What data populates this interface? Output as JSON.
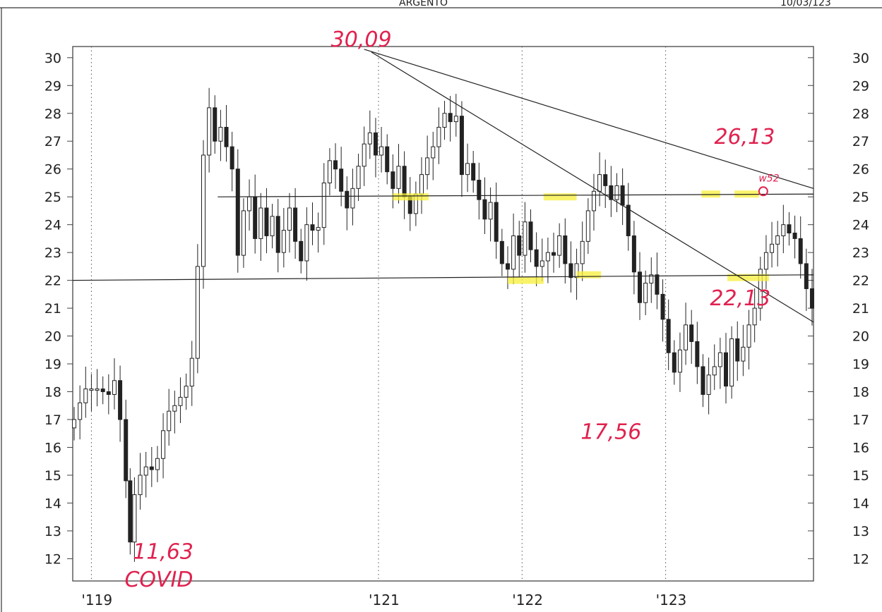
{
  "header": {
    "title": "ARGENTO",
    "date": "10/03/123"
  },
  "chart_data": {
    "type": "candlestick",
    "ylim": [
      11.2,
      30.4
    ],
    "yticks": [
      12,
      13,
      14,
      15,
      16,
      17,
      18,
      19,
      20,
      21,
      22,
      23,
      24,
      25,
      26,
      27,
      28,
      29,
      30
    ],
    "xlim": [
      2018.87,
      2024.03
    ],
    "xticks": [
      {
        "x": 2019.0,
        "label": "'119"
      },
      {
        "x": 2021.0,
        "label": "'121"
      },
      {
        "x": 2022.0,
        "label": "'122"
      },
      {
        "x": 2023.0,
        "label": "'123"
      }
    ],
    "grid": "vertical-dotted",
    "close_series": [
      [
        2018.88,
        17.0
      ],
      [
        2018.92,
        17.6
      ],
      [
        2018.96,
        18.1
      ],
      [
        2019.0,
        18.1
      ],
      [
        2019.04,
        18.1
      ],
      [
        2019.08,
        18.0
      ],
      [
        2019.12,
        17.9
      ],
      [
        2019.16,
        18.4
      ],
      [
        2019.2,
        17.0
      ],
      [
        2019.24,
        14.8
      ],
      [
        2019.27,
        12.6
      ],
      [
        2019.3,
        14.3
      ],
      [
        2019.34,
        15.0
      ],
      [
        2019.38,
        15.3
      ],
      [
        2019.42,
        15.2
      ],
      [
        2019.46,
        15.6
      ],
      [
        2019.5,
        16.6
      ],
      [
        2019.54,
        17.3
      ],
      [
        2019.58,
        17.5
      ],
      [
        2019.62,
        17.8
      ],
      [
        2019.66,
        18.2
      ],
      [
        2019.7,
        19.2
      ],
      [
        2019.74,
        22.5
      ],
      [
        2019.78,
        26.5
      ],
      [
        2019.82,
        28.2
      ],
      [
        2019.86,
        27.0
      ],
      [
        2019.9,
        27.5
      ],
      [
        2019.94,
        26.8
      ],
      [
        2019.98,
        26.0
      ],
      [
        2020.02,
        22.9
      ],
      [
        2020.06,
        24.5
      ],
      [
        2020.1,
        25.0
      ],
      [
        2020.14,
        23.5
      ],
      [
        2020.18,
        24.6
      ],
      [
        2020.22,
        23.6
      ],
      [
        2020.26,
        24.3
      ],
      [
        2020.3,
        23.0
      ],
      [
        2020.34,
        23.8
      ],
      [
        2020.38,
        24.6
      ],
      [
        2020.42,
        23.4
      ],
      [
        2020.46,
        22.7
      ],
      [
        2020.5,
        24.0
      ],
      [
        2020.54,
        23.8
      ],
      [
        2020.58,
        23.9
      ],
      [
        2020.62,
        25.5
      ],
      [
        2020.66,
        26.3
      ],
      [
        2020.7,
        26.0
      ],
      [
        2020.74,
        25.2
      ],
      [
        2020.78,
        24.6
      ],
      [
        2020.82,
        25.3
      ],
      [
        2020.86,
        26.1
      ],
      [
        2020.9,
        26.9
      ],
      [
        2020.94,
        27.3
      ],
      [
        2020.98,
        26.5
      ],
      [
        2021.02,
        26.8
      ],
      [
        2021.06,
        25.9
      ],
      [
        2021.1,
        25.3
      ],
      [
        2021.14,
        26.1
      ],
      [
        2021.18,
        25.0
      ],
      [
        2021.22,
        24.4
      ],
      [
        2021.26,
        25.1
      ],
      [
        2021.3,
        25.8
      ],
      [
        2021.34,
        26.4
      ],
      [
        2021.38,
        26.8
      ],
      [
        2021.42,
        27.5
      ],
      [
        2021.46,
        28.0
      ],
      [
        2021.5,
        27.7
      ],
      [
        2021.54,
        27.9
      ],
      [
        2021.58,
        25.8
      ],
      [
        2021.62,
        26.2
      ],
      [
        2021.66,
        25.6
      ],
      [
        2021.7,
        24.9
      ],
      [
        2021.74,
        24.2
      ],
      [
        2021.78,
        24.8
      ],
      [
        2021.82,
        23.4
      ],
      [
        2021.86,
        22.6
      ],
      [
        2021.9,
        22.4
      ],
      [
        2021.94,
        23.6
      ],
      [
        2021.98,
        22.9
      ],
      [
        2022.02,
        24.1
      ],
      [
        2022.06,
        23.1
      ],
      [
        2022.1,
        22.5
      ],
      [
        2022.14,
        22.7
      ],
      [
        2022.18,
        23.0
      ],
      [
        2022.22,
        22.9
      ],
      [
        2022.26,
        23.6
      ],
      [
        2022.3,
        22.6
      ],
      [
        2022.34,
        22.1
      ],
      [
        2022.38,
        22.6
      ],
      [
        2022.42,
        23.4
      ],
      [
        2022.46,
        24.5
      ],
      [
        2022.5,
        25.2
      ],
      [
        2022.54,
        25.8
      ],
      [
        2022.58,
        25.4
      ],
      [
        2022.62,
        24.9
      ],
      [
        2022.66,
        25.4
      ],
      [
        2022.7,
        24.7
      ],
      [
        2022.74,
        23.6
      ],
      [
        2022.78,
        22.3
      ],
      [
        2022.82,
        21.2
      ],
      [
        2022.86,
        21.9
      ],
      [
        2022.9,
        22.2
      ],
      [
        2022.94,
        21.5
      ],
      [
        2022.98,
        20.6
      ],
      [
        2023.02,
        19.4
      ],
      [
        2023.06,
        18.7
      ],
      [
        2023.1,
        19.5
      ],
      [
        2023.14,
        20.4
      ],
      [
        2023.18,
        19.8
      ],
      [
        2023.22,
        18.9
      ],
      [
        2023.26,
        17.9
      ],
      [
        2023.3,
        18.6
      ],
      [
        2023.34,
        18.9
      ],
      [
        2023.38,
        19.4
      ],
      [
        2023.42,
        18.2
      ],
      [
        2023.46,
        19.9
      ],
      [
        2023.5,
        19.1
      ],
      [
        2023.54,
        19.6
      ],
      [
        2023.58,
        20.4
      ],
      [
        2023.62,
        21.0
      ],
      [
        2023.66,
        22.4
      ],
      [
        2023.7,
        23.0
      ],
      [
        2023.74,
        23.3
      ],
      [
        2023.78,
        23.6
      ],
      [
        2023.82,
        24.0
      ],
      [
        2023.86,
        23.7
      ],
      [
        2023.9,
        23.5
      ],
      [
        2023.94,
        22.6
      ],
      [
        2023.98,
        21.7
      ],
      [
        2024.02,
        21.0
      ]
    ],
    "hand_annotations": [
      {
        "text": "30,09",
        "x": 2020.88,
        "y": 30.4
      },
      {
        "text": "26,13",
        "x": 2023.55,
        "y": 26.9
      },
      {
        "text": "w52",
        "x": 2023.72,
        "y": 25.55
      },
      {
        "text": "22,13",
        "x": 2023.52,
        "y": 21.1
      },
      {
        "text": "17,56",
        "x": 2022.62,
        "y": 16.3
      },
      {
        "text": "11,63",
        "x": 2019.5,
        "y": 12.0
      },
      {
        "text": "COVID",
        "x": 2019.47,
        "y": 11.0
      }
    ]
  }
}
